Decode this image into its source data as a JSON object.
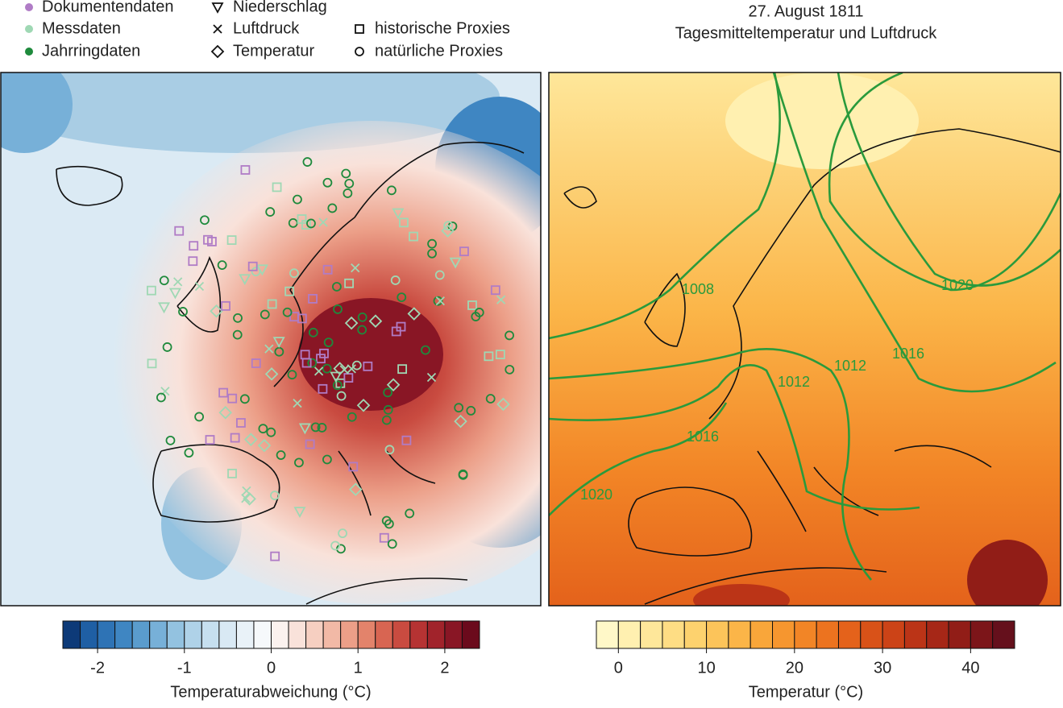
{
  "legend": {
    "sources": [
      {
        "label": "Dokumentendaten",
        "color": "#b07cc6"
      },
      {
        "label": "Messdaten",
        "color": "#9fd8b4"
      },
      {
        "label": "Jahrringdaten",
        "color": "#1e8a3c"
      }
    ],
    "variables": [
      "Niederschlag",
      "Luftdruck",
      "Temperatur"
    ],
    "proxies": [
      "historische Proxies",
      "natürliche Proxies"
    ]
  },
  "right_panel": {
    "title": "27. August 1811",
    "subtitle": "Tagesmitteltemperatur und Luftdruck",
    "contour_color": "#2a9a3c",
    "contour_labels": [
      1008,
      1012,
      1012,
      1016,
      1016,
      1020,
      1020
    ]
  },
  "colorbars": [
    {
      "label": "Temperaturabweichung (°C)",
      "lim": [
        -2.4,
        2.4
      ],
      "ticks": [
        -2,
        -1,
        0,
        1,
        2
      ],
      "colors": [
        "#0d3a78",
        "#1f5fa4",
        "#2e73b5",
        "#3f86c2",
        "#5a9ccd",
        "#77b0d8",
        "#93c2e0",
        "#afd2e8",
        "#c6dfef",
        "#d9e9f4",
        "#e9f2f8",
        "#f6f9fb",
        "#fbf2ef",
        "#f9e2da",
        "#f6cfc1",
        "#f2b9a6",
        "#ec9f88",
        "#e3836b",
        "#d86552",
        "#c94b40",
        "#b63333",
        "#a1232b",
        "#891625",
        "#6b0a1c"
      ]
    },
    {
      "label": "Temperatur (°C)",
      "lim": [
        -2.5,
        45
      ],
      "ticks": [
        0,
        10,
        20,
        30,
        40
      ],
      "colors": [
        "#fff8c8",
        "#fff0b0",
        "#fee79a",
        "#fedd84",
        "#fdd26e",
        "#fcc45a",
        "#fbb548",
        "#f9a63a",
        "#f6962f",
        "#f28526",
        "#ec731f",
        "#e4621b",
        "#d95218",
        "#cc4317",
        "#bb3417",
        "#a62717",
        "#911d17",
        "#7c1519",
        "#65101c"
      ]
    }
  ]
}
